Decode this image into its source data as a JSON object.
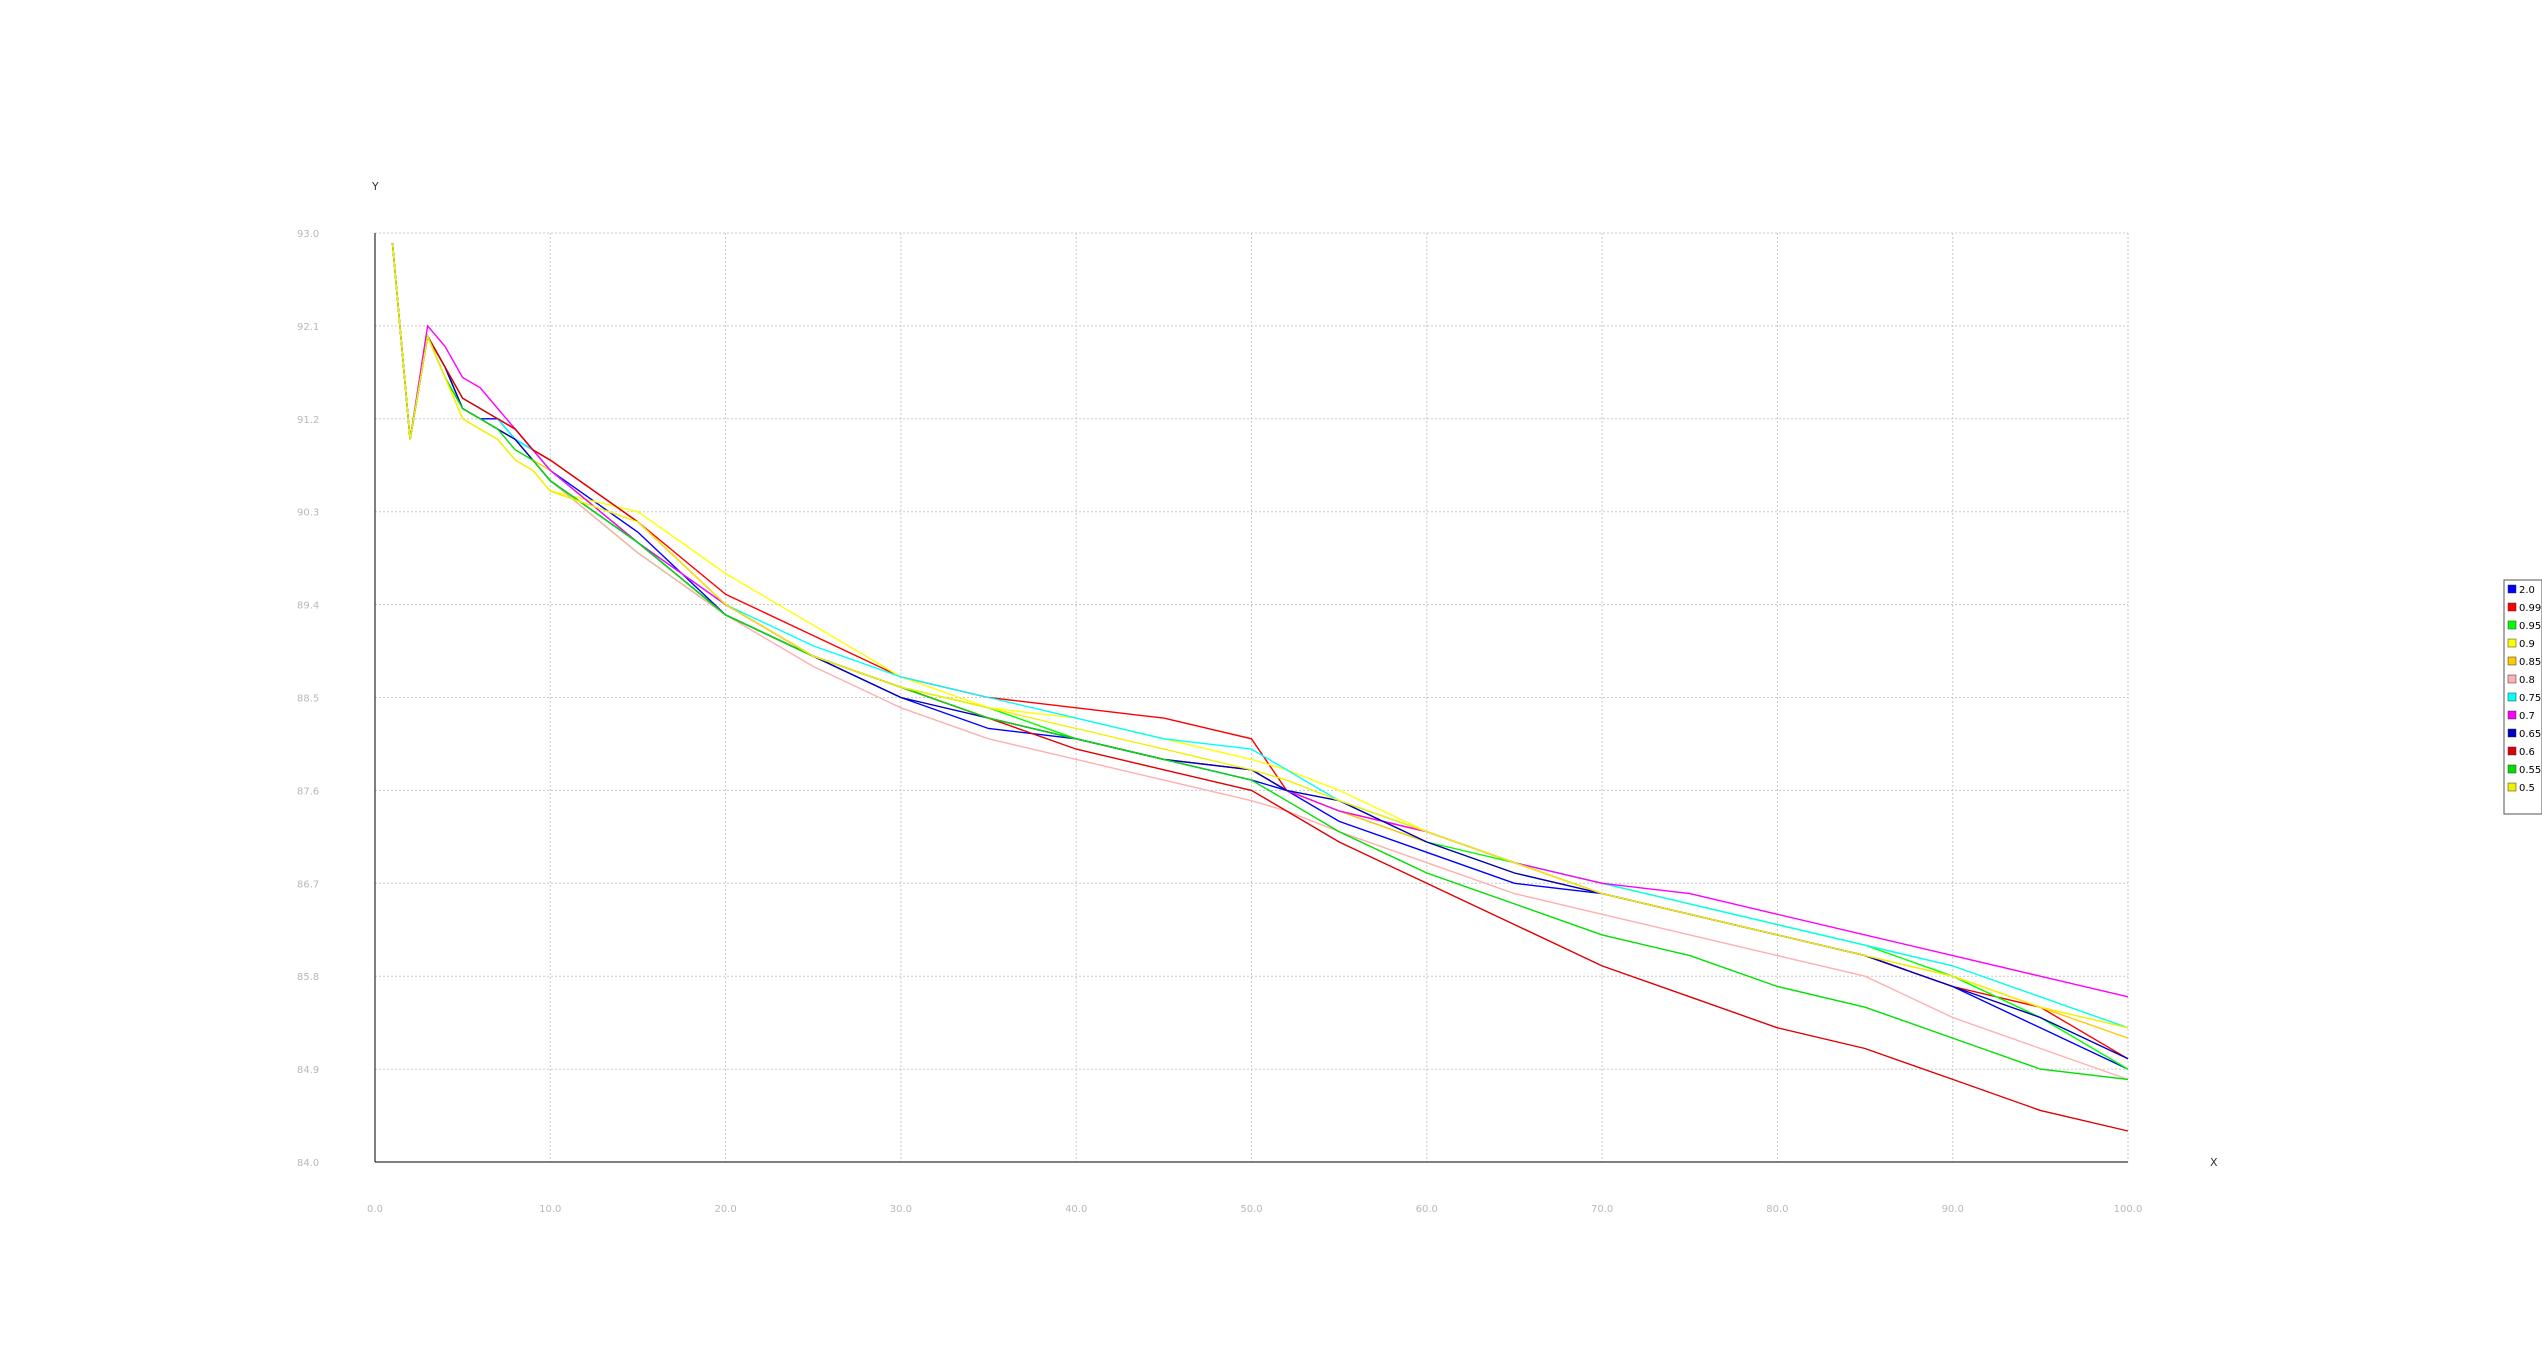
{
  "chart_data": {
    "type": "line",
    "title": "",
    "xlabel": "X",
    "ylabel": "Y",
    "xlim": [
      0,
      100
    ],
    "ylim": [
      84.0,
      93.0
    ],
    "x_ticks": [
      "0.0",
      "10.0",
      "20.0",
      "30.0",
      "40.0",
      "50.0",
      "60.0",
      "70.0",
      "80.0",
      "90.0",
      "100.0"
    ],
    "y_ticks": [
      "93.0",
      "92.1",
      "91.2",
      "90.3",
      "89.4",
      "88.5",
      "87.6",
      "86.7",
      "85.8",
      "84.9",
      "84.0"
    ],
    "grid": true,
    "legend_position": "right",
    "x": [
      1,
      2,
      3,
      4,
      5,
      6,
      7,
      8,
      9,
      10,
      15,
      20,
      25,
      30,
      35,
      40,
      45,
      50,
      52,
      55,
      60,
      65,
      70,
      75,
      80,
      85,
      90,
      95,
      100
    ],
    "series": [
      {
        "name": "2.0",
        "color": "#0000ff",
        "values": [
          92.9,
          91.0,
          92.0,
          91.7,
          91.3,
          91.2,
          91.2,
          91.0,
          90.9,
          90.7,
          90.1,
          89.3,
          88.9,
          88.5,
          88.2,
          88.1,
          87.9,
          87.7,
          87.6,
          87.3,
          87.0,
          86.7,
          86.6,
          86.4,
          86.2,
          86.0,
          85.7,
          85.3,
          84.9
        ]
      },
      {
        "name": "0.99",
        "color": "#ff0000",
        "values": [
          92.9,
          91.0,
          92.0,
          91.7,
          91.4,
          91.3,
          91.2,
          91.1,
          90.9,
          90.8,
          90.2,
          89.5,
          89.1,
          88.7,
          88.5,
          88.4,
          88.3,
          88.1,
          87.6,
          87.4,
          87.2,
          86.9,
          86.6,
          86.4,
          86.2,
          86.0,
          85.7,
          85.5,
          85.0
        ]
      },
      {
        "name": "0.95",
        "color": "#00ff00",
        "values": [
          92.9,
          91.0,
          92.0,
          91.7,
          91.3,
          91.2,
          91.1,
          91.0,
          90.8,
          90.6,
          89.9,
          89.3,
          88.9,
          88.6,
          88.4,
          88.1,
          87.9,
          87.8,
          87.6,
          87.4,
          87.1,
          86.9,
          86.7,
          86.5,
          86.3,
          86.1,
          85.8,
          85.4,
          84.9
        ]
      },
      {
        "name": "0.9",
        "color": "#ffff00",
        "values": [
          92.9,
          91.0,
          92.0,
          91.6,
          91.2,
          91.1,
          91.0,
          90.8,
          90.7,
          90.5,
          90.3,
          89.7,
          89.2,
          88.7,
          88.4,
          88.3,
          88.1,
          87.9,
          87.8,
          87.6,
          87.2,
          86.9,
          86.7,
          86.5,
          86.3,
          86.1,
          85.9,
          85.6,
          85.3
        ]
      },
      {
        "name": "0.85",
        "color": "#ffc800",
        "values": [
          92.9,
          91.0,
          92.0,
          91.6,
          91.3,
          91.2,
          91.1,
          91.0,
          90.8,
          90.7,
          90.0,
          89.3,
          88.9,
          88.6,
          88.3,
          88.1,
          87.9,
          87.8,
          87.6,
          87.4,
          87.1,
          86.8,
          86.6,
          86.4,
          86.2,
          86.0,
          85.8,
          85.5,
          85.2
        ]
      },
      {
        "name": "0.8",
        "color": "#ffafaf",
        "values": [
          92.9,
          91.0,
          92.0,
          91.6,
          91.3,
          91.2,
          91.1,
          91.0,
          90.8,
          90.6,
          89.9,
          89.3,
          88.8,
          88.4,
          88.1,
          87.9,
          87.7,
          87.5,
          87.4,
          87.2,
          86.9,
          86.6,
          86.4,
          86.2,
          86.0,
          85.8,
          85.4,
          85.1,
          84.8
        ]
      },
      {
        "name": "0.75",
        "color": "#00ffff",
        "values": [
          92.9,
          91.0,
          92.0,
          91.7,
          91.4,
          91.3,
          91.2,
          91.0,
          90.9,
          90.7,
          90.0,
          89.4,
          89.0,
          88.7,
          88.5,
          88.3,
          88.1,
          88.0,
          87.8,
          87.5,
          87.2,
          86.9,
          86.7,
          86.5,
          86.3,
          86.1,
          85.9,
          85.6,
          85.3
        ]
      },
      {
        "name": "0.7",
        "color": "#ff00ff",
        "values": [
          92.9,
          91.0,
          92.1,
          91.9,
          91.6,
          91.5,
          91.3,
          91.1,
          90.9,
          90.7,
          90.0,
          89.4,
          88.9,
          88.6,
          88.3,
          88.1,
          87.9,
          87.8,
          87.6,
          87.4,
          87.2,
          86.9,
          86.7,
          86.6,
          86.4,
          86.2,
          86.0,
          85.8,
          85.6
        ]
      },
      {
        "name": "0.65",
        "color": "#0000c0",
        "values": [
          92.9,
          91.0,
          92.0,
          91.7,
          91.3,
          91.2,
          91.1,
          91.0,
          90.8,
          90.6,
          90.0,
          89.3,
          88.9,
          88.5,
          88.3,
          88.1,
          87.9,
          87.8,
          87.6,
          87.5,
          87.1,
          86.8,
          86.6,
          86.4,
          86.2,
          86.0,
          85.7,
          85.4,
          85.0
        ]
      },
      {
        "name": "0.6",
        "color": "#e00000",
        "values": [
          92.9,
          91.0,
          92.0,
          91.7,
          91.4,
          91.3,
          91.2,
          91.1,
          90.9,
          90.8,
          90.2,
          89.4,
          88.9,
          88.6,
          88.3,
          88.0,
          87.8,
          87.6,
          87.4,
          87.1,
          86.7,
          86.3,
          85.9,
          85.6,
          85.3,
          85.1,
          84.8,
          84.5,
          84.3
        ]
      },
      {
        "name": "0.55",
        "color": "#00e000",
        "values": [
          92.9,
          91.0,
          92.0,
          91.6,
          91.3,
          91.2,
          91.1,
          90.9,
          90.8,
          90.6,
          90.0,
          89.3,
          88.9,
          88.6,
          88.3,
          88.1,
          87.9,
          87.7,
          87.5,
          87.2,
          86.8,
          86.5,
          86.2,
          86.0,
          85.7,
          85.5,
          85.2,
          84.9,
          84.8
        ]
      },
      {
        "name": "0.5",
        "color": "#f0f000",
        "values": [
          92.9,
          91.0,
          92.0,
          91.6,
          91.2,
          91.1,
          91.0,
          90.8,
          90.7,
          90.5,
          90.2,
          89.4,
          88.9,
          88.6,
          88.4,
          88.2,
          88.0,
          87.8,
          87.7,
          87.5,
          87.2,
          86.9,
          86.6,
          86.4,
          86.2,
          86.0,
          85.8,
          85.5,
          85.3
        ]
      }
    ]
  }
}
